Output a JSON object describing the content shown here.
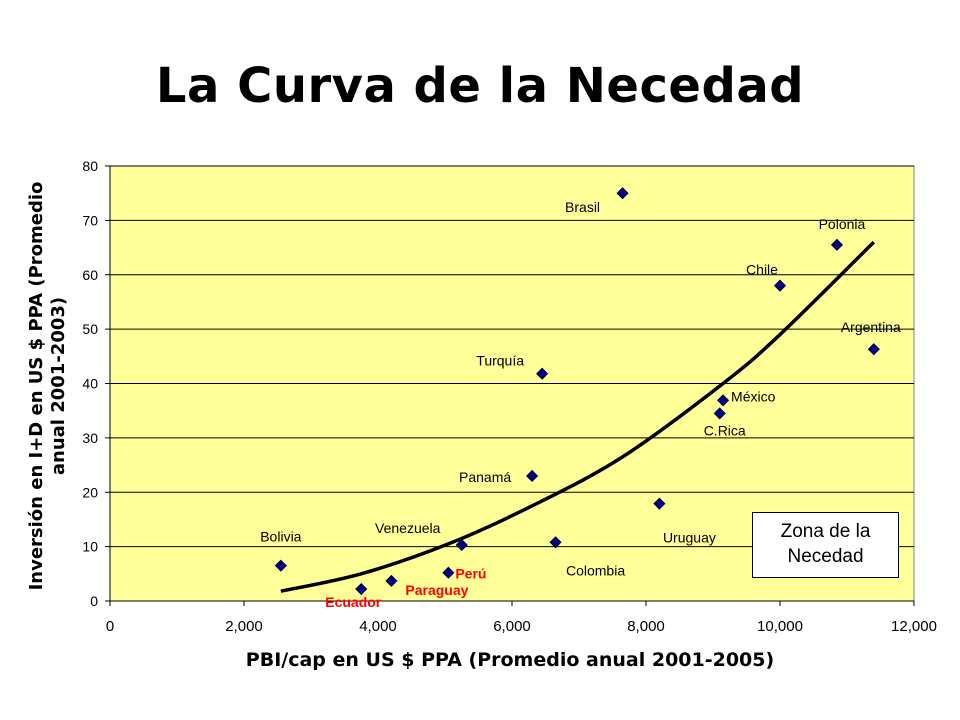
{
  "chart_data": {
    "type": "scatter",
    "title": "La Curva de la Necedad",
    "xlabel": "PBI/cap en US $ PPA  (Promedio anual 2001-2005)",
    "ylabel_line1": "Inversión en I+D en US $ PPA (Promedio",
    "ylabel_line2": "anual 2001-2003)",
    "xlim": [
      0,
      12000
    ],
    "ylim": [
      0,
      80
    ],
    "x_ticks": [
      0,
      2000,
      4000,
      6000,
      8000,
      10000,
      12000
    ],
    "x_tick_labels": [
      "0",
      "2,000",
      "4,000",
      "6,000",
      "8,000",
      "10,000",
      "12,000"
    ],
    "y_ticks": [
      0,
      10,
      20,
      30,
      40,
      50,
      60,
      70,
      80
    ],
    "y_tick_labels": [
      "0",
      "10",
      "20",
      "30",
      "40",
      "50",
      "60",
      "70",
      "80"
    ],
    "grid": "horizontal",
    "plot_bg": "#ffff99",
    "marker_color": "#000080",
    "highlight_color": "#ff0000",
    "points": [
      {
        "label": "Bolivia",
        "x": 2550,
        "y": 6.5,
        "highlight": false
      },
      {
        "label": "Ecuador",
        "x": 3750,
        "y": 2.2,
        "highlight": true
      },
      {
        "label": "Paraguay",
        "x": 4200,
        "y": 3.7,
        "highlight": true
      },
      {
        "label": "Perú",
        "x": 5050,
        "y": 5.2,
        "highlight": true
      },
      {
        "label": "Venezuela",
        "x": 5250,
        "y": 10.3,
        "highlight": false
      },
      {
        "label": "Panamá",
        "x": 6300,
        "y": 23.0,
        "highlight": false
      },
      {
        "label": "Turquía",
        "x": 6450,
        "y": 41.8,
        "highlight": false
      },
      {
        "label": "Colombia",
        "x": 6650,
        "y": 10.8,
        "highlight": false
      },
      {
        "label": "Brasil",
        "x": 7650,
        "y": 75.0,
        "highlight": false
      },
      {
        "label": "Uruguay",
        "x": 8200,
        "y": 17.9,
        "highlight": false
      },
      {
        "label": "México",
        "x": 9150,
        "y": 36.9,
        "highlight": false
      },
      {
        "label": "C.Rica",
        "x": 9100,
        "y": 34.5,
        "highlight": false
      },
      {
        "label": "Chile",
        "x": 10000,
        "y": 58.0,
        "highlight": false
      },
      {
        "label": "Polonia",
        "x": 10850,
        "y": 65.5,
        "highlight": false
      },
      {
        "label": "Argentina",
        "x": 11400,
        "y": 46.3,
        "highlight": false
      }
    ],
    "trend_line": {
      "x": [
        2550,
        3750,
        5050,
        6300,
        7650,
        9150,
        10000,
        11400
      ],
      "y": [
        1.8,
        5.0,
        10.5,
        17.5,
        26.5,
        40.0,
        49.0,
        66.0
      ]
    },
    "annotation_line1": "Zona de la",
    "annotation_line2": "Necedad"
  }
}
